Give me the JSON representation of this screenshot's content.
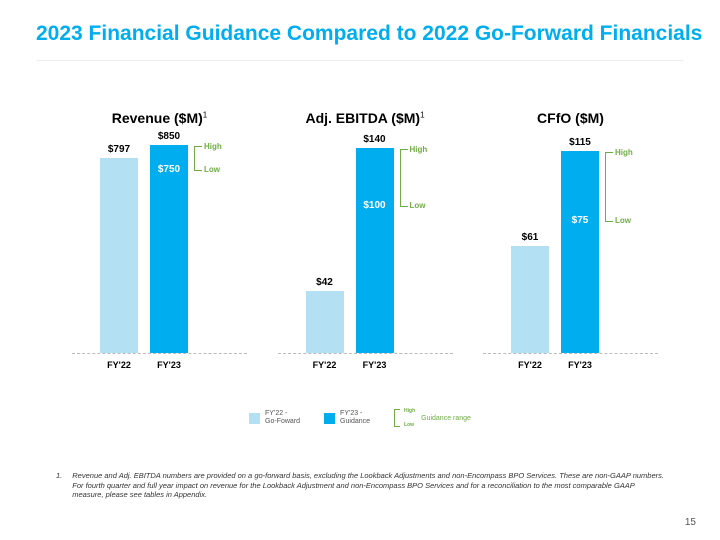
{
  "title": "2023 Financial Guidance Compared to 2022 Go-Forward Financials",
  "title_color": "#00aeef",
  "background_color": "#ffffff",
  "colors": {
    "fy22": "#b3e0f2",
    "fy23": "#00aeef",
    "range": "#70ad47",
    "text": "#000000"
  },
  "charts": [
    {
      "title": "Revenue ($M)",
      "superscript": "1",
      "ymax": 900,
      "fy22": {
        "value": 797,
        "label": "$797"
      },
      "fy23": {
        "high": 850,
        "low": 750,
        "high_label": "$850",
        "low_label": "$750"
      }
    },
    {
      "title": "Adj. EBITDA ($M)",
      "superscript": "1",
      "ymax": 150,
      "fy22": {
        "value": 42,
        "label": "$42"
      },
      "fy23": {
        "high": 140,
        "low": 100,
        "high_label": "$140",
        "low_label": "$100"
      }
    },
    {
      "title": "CFfO ($M)",
      "superscript": "",
      "ymax": 125,
      "fy22": {
        "value": 61,
        "label": "$61"
      },
      "fy23": {
        "high": 115,
        "low": 75,
        "high_label": "$115",
        "low_label": "$75"
      }
    }
  ],
  "xlabels": {
    "fy22": "FY'22",
    "fy23": "FY'23"
  },
  "range_labels": {
    "high": "High",
    "low": "Low"
  },
  "legend": {
    "fy22": "FY'22 -\nGo-Foward",
    "fy23": "FY'23 -\nGuidance",
    "range": "Guidance range"
  },
  "footnote": {
    "num": "1.",
    "text": "Revenue and Adj. EBITDA numbers are provided on a go-forward basis, excluding the Lookback Adjustments and non-Encompass BPO Services.  These are non-GAAP numbers. For fourth quarter and full year impact on revenue for the Lookback Adjustment and non-Encompass BPO Services and for a reconciliation to the most comparable GAAP measure, please see tables in Appendix."
  },
  "page_number": "15"
}
